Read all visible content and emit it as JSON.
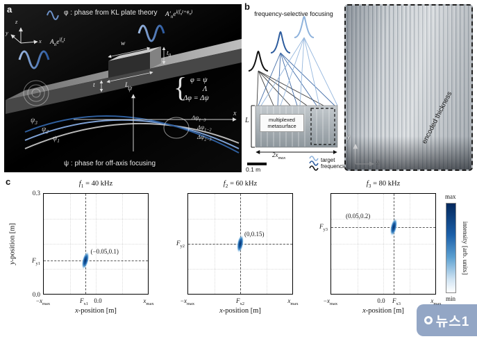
{
  "panel_a": {
    "label": "a",
    "top_caption": "φ : phase from KL plate theory",
    "wave_in_label": "A<sub>n</sub>e<sup>if<sub>n</sub>t</sup>",
    "wave_out_label": "A′<sub>n</sub>e<sup>i(f<sub>n</sub>t+φ<sub>n</sub>)</sup>",
    "axis_z": "z",
    "axis_y": "y",
    "axis_x": "x",
    "dim_w": "w",
    "dim_t0": "t<sub>0</sub>",
    "dim_t": "t",
    "dim_L": "L",
    "brace": "{",
    "eq_line1": "φ = ψ",
    "eq_line2": "Λ",
    "eq_line3": "Δφ = Δψ",
    "psi_axis_label": "ψ",
    "x_axis_label": "x",
    "curve_labels": {
      "psi3": "ψ<sub>3</sub>",
      "psi2": "ψ<sub>2</sub>",
      "psi1": "ψ<sub>1</sub>"
    },
    "delta_labels": {
      "d13": "Δψ<sub>1−3</sub>",
      "d12": "Δψ<sub>1−2</sub>",
      "d23": "Δψ<sub>2−3</sub>"
    },
    "bottom_caption": "ψ : phase for off-axis focusing"
  },
  "panel_b": {
    "label": "b",
    "title": "frequency-selective focusing",
    "inset_label": "multiplexed metasurface",
    "length_label": "L",
    "aperture_label": "2x<sub>max</sub>",
    "scalebar_label": "0.1 m",
    "target_label": "target frequencies",
    "photo_label": "encoded thickness",
    "photo_axis_y": "y",
    "photo_axis_x": "x"
  },
  "panel_c": {
    "label": "c",
    "ylabel": "<i>y</i>-position [m]",
    "xlabel": "<i>x</i>-position [m]",
    "colorbar": {
      "max": "max",
      "min": "min",
      "label": "intensity [arb. units]"
    },
    "plots": [
      {
        "title": "<i>f</i><sub>1</sub> = 40 kHz",
        "annotation": "(−0.05,0.1)",
        "ytick_top": "0.3",
        "ytick_focus": "<i>F</i><sub>y1</sub>",
        "ytick_bottom": "0.0",
        "xticks": [
          "−<i>x</i><sub>max</sub>",
          "<i>F</i><sub>x1</sub>",
          "0.0",
          "<i>x</i><sub>max</sub>"
        ]
      },
      {
        "title": "<i>f</i><sub>2</sub> = 60 kHz",
        "annotation": "(0,0.15)",
        "ytick_focus": "<i>F</i><sub>y2</sub>",
        "xticks": [
          "−<i>x</i><sub>max</sub>",
          "<i>F</i><sub>x2</sub>",
          "<i>x</i><sub>max</sub>"
        ]
      },
      {
        "title": "<i>f</i><sub>3</sub> = 80 kHz",
        "annotation": "(0.05,0.2)",
        "ytick_focus": "<i>F</i><sub>y3</sub>",
        "xticks": [
          "−<i>x</i><sub>max</sub>",
          "0.0",
          "<i>F</i><sub>x3</sub>",
          "<i>x</i><sub>max</sub>"
        ]
      }
    ]
  },
  "watermark": {
    "text": "뉴스1"
  },
  "chart_data": [
    {
      "type": "heatmap",
      "title": "f1 = 40 kHz",
      "xlabel": "x-position [m]",
      "ylabel": "y-position [m]",
      "xlim": [
        "-x_max",
        "x_max"
      ],
      "ylim": [
        0.0,
        0.3
      ],
      "focal_point": {
        "x": -0.05,
        "y": 0.1
      },
      "colorbar": {
        "label": "intensity [arb. units]",
        "min": "min (white)",
        "max": "max (dark blue)"
      },
      "grid": true
    },
    {
      "type": "heatmap",
      "title": "f2 = 60 kHz",
      "xlabel": "x-position [m]",
      "ylabel": "y-position [m]",
      "xlim": [
        "-x_max",
        "x_max"
      ],
      "ylim": [
        0.0,
        0.3
      ],
      "focal_point": {
        "x": 0.0,
        "y": 0.15
      },
      "colorbar": {
        "label": "intensity [arb. units]",
        "min": "min (white)",
        "max": "max (dark blue)"
      },
      "grid": true
    },
    {
      "type": "heatmap",
      "title": "f3 = 80 kHz",
      "xlabel": "x-position [m]",
      "ylabel": "y-position [m]",
      "xlim": [
        "-x_max",
        "x_max"
      ],
      "ylim": [
        0.0,
        0.3
      ],
      "focal_point": {
        "x": 0.05,
        "y": 0.2
      },
      "colorbar": {
        "label": "intensity [arb. units]",
        "min": "min (white)",
        "max": "max (dark blue)"
      },
      "grid": true
    }
  ]
}
